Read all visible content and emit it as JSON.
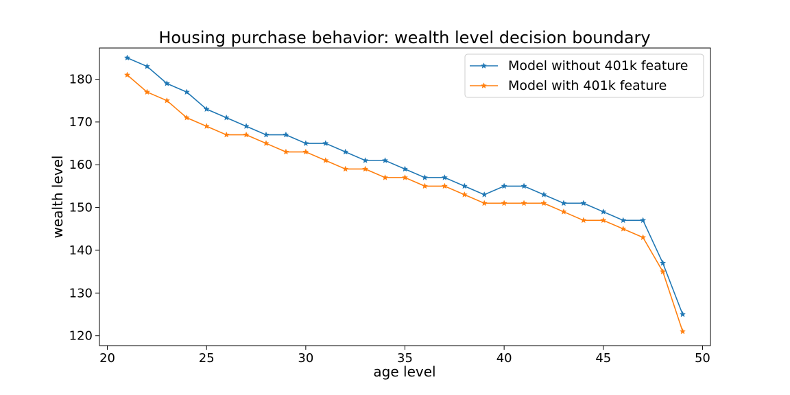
{
  "chart_data": {
    "type": "line",
    "title": "Housing purchase behavior: wealth level decision boundary",
    "xlabel": "age level",
    "ylabel": "wealth level",
    "xlim": [
      19.6,
      50.4
    ],
    "ylim": [
      117.7,
      187.3
    ],
    "xticks": [
      20,
      25,
      30,
      35,
      40,
      45,
      50
    ],
    "yticks": [
      120,
      130,
      140,
      150,
      160,
      170,
      180
    ],
    "grid": false,
    "legend_position": "top-right",
    "marker": "star",
    "x": [
      21,
      22,
      23,
      24,
      25,
      26,
      27,
      28,
      29,
      30,
      31,
      32,
      33,
      34,
      35,
      36,
      37,
      38,
      39,
      40,
      41,
      42,
      43,
      44,
      45,
      46,
      47,
      48,
      49
    ],
    "series": [
      {
        "name": "Model without 401k feature",
        "color": "#1f77b4",
        "values": [
          185,
          183,
          179,
          177,
          173,
          171,
          169,
          167,
          167,
          165,
          165,
          163,
          161,
          161,
          159,
          157,
          157,
          155,
          153,
          155,
          155,
          153,
          151,
          151,
          149,
          147,
          147,
          137,
          125
        ]
      },
      {
        "name": "Model with 401k feature",
        "color": "#ff7f0e",
        "values": [
          181,
          177,
          175,
          171,
          169,
          167,
          167,
          165,
          163,
          163,
          161,
          159,
          159,
          157,
          157,
          155,
          155,
          153,
          151,
          151,
          151,
          151,
          149,
          147,
          147,
          145,
          143,
          135,
          121
        ]
      }
    ]
  }
}
